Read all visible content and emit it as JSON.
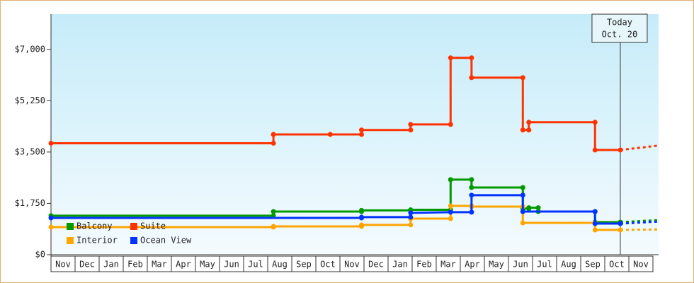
{
  "chart_data": {
    "type": "line",
    "step": true,
    "categories": [
      "Nov",
      "Dec",
      "Jan",
      "Feb",
      "Mar",
      "Apr",
      "May",
      "Jun",
      "Jul",
      "Aug",
      "Sep",
      "Oct",
      "Nov",
      "Dec",
      "Jan",
      "Feb",
      "Mar",
      "Apr",
      "May",
      "Jun",
      "Jul",
      "Aug",
      "Sep",
      "Oct",
      "Nov"
    ],
    "xlim": [
      0,
      25.24
    ],
    "ylim": [
      0,
      8200
    ],
    "yticks": [
      {
        "value": 0,
        "label": "$0"
      },
      {
        "value": 1750,
        "label": "$1,750"
      },
      {
        "value": 3500,
        "label": "$3,500"
      },
      {
        "value": 5250,
        "label": "$5,250"
      },
      {
        "value": 7000,
        "label": "$7,000"
      }
    ],
    "today": {
      "x": 23.65,
      "label": [
        "Today",
        "Oct. 20"
      ]
    },
    "series": [
      {
        "name": "Balcony",
        "color": "#009900",
        "x": [
          0,
          9.24,
          9.24,
          12.9,
          12.9,
          14.94,
          14.94,
          16.6,
          16.6,
          17.47,
          17.47,
          19.6,
          19.6,
          19.85,
          19.85,
          20.24,
          20.24,
          22.6,
          22.6,
          23.65
        ],
        "values": [
          1330,
          1330,
          1470,
          1470,
          1510,
          1510,
          1530,
          1530,
          2560,
          2560,
          2290,
          2290,
          1570,
          1570,
          1600,
          1600,
          1470,
          1470,
          1110,
          1110
        ],
        "projection": {
          "x": [
            23.65,
            25.24
          ],
          "values": [
            1110,
            1180
          ]
        }
      },
      {
        "name": "Suite",
        "color": "#ff3300",
        "x": [
          0,
          9.24,
          9.24,
          11.6,
          12.9,
          12.9,
          14.94,
          14.94,
          16.6,
          16.6,
          17.47,
          17.47,
          19.6,
          19.6,
          19.85,
          19.85,
          22.6,
          22.6,
          23.65
        ],
        "values": [
          3800,
          3800,
          4100,
          4100,
          4100,
          4250,
          4250,
          4440,
          4440,
          6710,
          6710,
          6035,
          6035,
          4250,
          4250,
          4515,
          4515,
          3570,
          3570
        ],
        "projection": {
          "x": [
            23.65,
            25.24
          ],
          "values": [
            3570,
            3720
          ]
        }
      },
      {
        "name": "Interior",
        "color": "#ffa500",
        "x": [
          0,
          9.24,
          9.24,
          12.9,
          12.9,
          14.94,
          14.94,
          16.6,
          16.6,
          17.47,
          17.47,
          19.6,
          19.6,
          22.6,
          22.6,
          23.65
        ],
        "values": [
          940,
          940,
          965,
          965,
          1015,
          1015,
          1230,
          1230,
          1665,
          1665,
          1640,
          1640,
          1085,
          1085,
          845,
          845
        ],
        "projection": {
          "x": [
            23.65,
            25.24
          ],
          "values": [
            845,
            860
          ]
        }
      },
      {
        "name": "Ocean View",
        "color": "#0033ff",
        "x": [
          0,
          12.9,
          12.9,
          14.94,
          14.94,
          16.6,
          17.47,
          17.47,
          19.6,
          19.6,
          22.6,
          22.6,
          23.65
        ],
        "values": [
          1255,
          1255,
          1280,
          1280,
          1425,
          1450,
          1450,
          2030,
          2030,
          1470,
          1470,
          1060,
          1060
        ],
        "projection": {
          "x": [
            23.65,
            25.24
          ],
          "values": [
            1060,
            1130
          ]
        }
      }
    ]
  }
}
